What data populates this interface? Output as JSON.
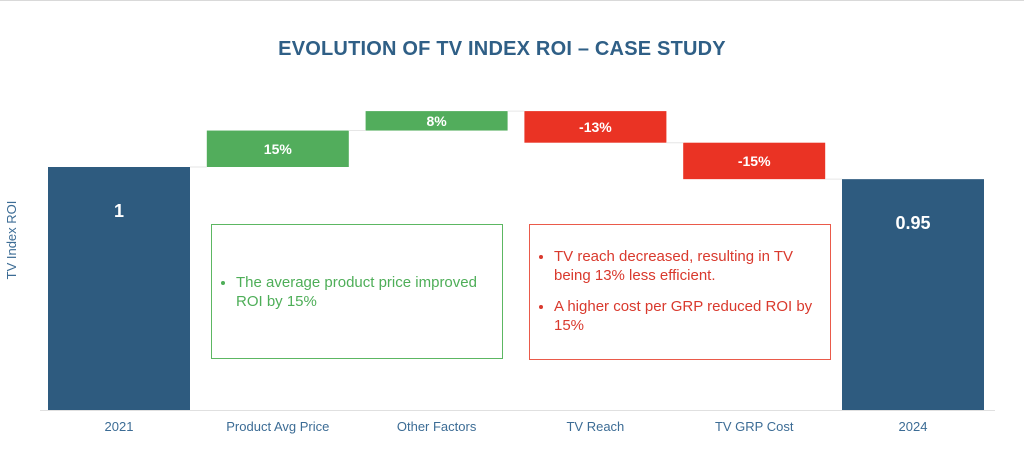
{
  "chart_data": {
    "type": "bar",
    "subtype": "waterfall",
    "title": "EVOLUTION OF TV INDEX ROI – CASE STUDY",
    "xlabel": "",
    "ylabel": "TV Index ROI",
    "categories": [
      "2021",
      "Product Avg Price",
      "Other Factors",
      "TV Reach",
      "TV GRP Cost",
      "2024"
    ],
    "bars": [
      {
        "category": "2021",
        "kind": "total",
        "value": 1,
        "label": "1"
      },
      {
        "category": "Product Avg Price",
        "kind": "increase",
        "value": 0.15,
        "label": "15%"
      },
      {
        "category": "Other Factors",
        "kind": "increase",
        "value": 0.08,
        "label": "8%"
      },
      {
        "category": "TV Reach",
        "kind": "decrease",
        "value": -0.13,
        "label": "-13%"
      },
      {
        "category": "TV GRP Cost",
        "kind": "decrease",
        "value": -0.15,
        "label": "-15%"
      },
      {
        "category": "2024",
        "kind": "total",
        "value": 0.95,
        "label": "0.95"
      }
    ],
    "colors": {
      "total": "#2e5b7f",
      "increase": "#52ad5c",
      "decrease": "#ea3324",
      "connector": "#e6e6e6",
      "axis": "#e0e0e0"
    },
    "grid": false,
    "legend": "none"
  },
  "annotations": {
    "positive": {
      "color": "#4eae58",
      "bullets": [
        "The average product price improved ROI by 15%"
      ]
    },
    "negative": {
      "color": "#d9392d",
      "bullets": [
        "TV reach decreased, resulting in TV being 13% less efficient.",
        "A higher cost per GRP reduced ROI by 15%"
      ]
    }
  }
}
